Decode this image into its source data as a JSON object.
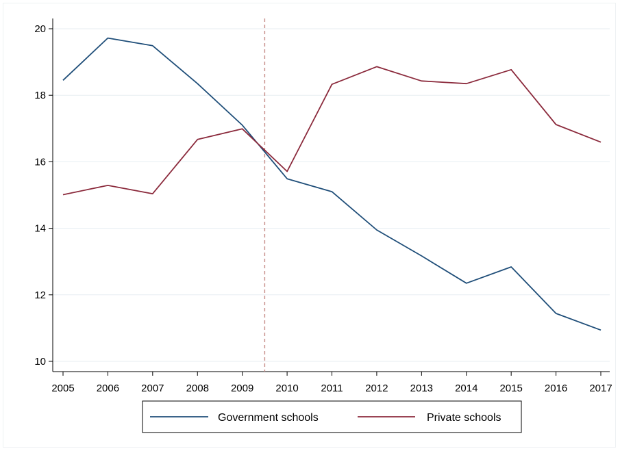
{
  "chart_data": {
    "type": "line",
    "x": [
      2005,
      2006,
      2007,
      2008,
      2009,
      2010,
      2011,
      2012,
      2013,
      2014,
      2015,
      2016,
      2017
    ],
    "xlim": [
      2005,
      2017
    ],
    "ylim": [
      10,
      20
    ],
    "yticks": [
      10,
      12,
      14,
      16,
      18,
      20
    ],
    "xtick_labels": [
      "2005",
      "2006",
      "2007",
      "2008",
      "2009",
      "2010",
      "2011",
      "2012",
      "2013",
      "2014",
      "2015",
      "2016",
      "2017"
    ],
    "ytick_labels": [
      "10",
      "12",
      "14",
      "16",
      "18",
      "20"
    ],
    "grid": true,
    "reference_line": {
      "x": 2009.5,
      "style": "dashed"
    },
    "legend_position": "bottom",
    "series": [
      {
        "name": "Government schools",
        "color": "#1f4e79",
        "values": [
          18.45,
          19.72,
          19.49,
          18.35,
          17.1,
          15.49,
          15.1,
          13.95,
          13.17,
          12.35,
          12.84,
          11.44,
          10.94
        ]
      },
      {
        "name": "Private schools",
        "color": "#8b2a3c",
        "values": [
          15.01,
          15.29,
          15.04,
          16.67,
          16.99,
          15.71,
          18.33,
          18.86,
          18.43,
          18.35,
          18.77,
          17.12,
          16.59
        ]
      }
    ],
    "title": "",
    "xlabel": "",
    "ylabel": ""
  },
  "colors": {
    "grid": "#e7eef2",
    "axis": "#000000",
    "reference_line": "#c9908c"
  }
}
